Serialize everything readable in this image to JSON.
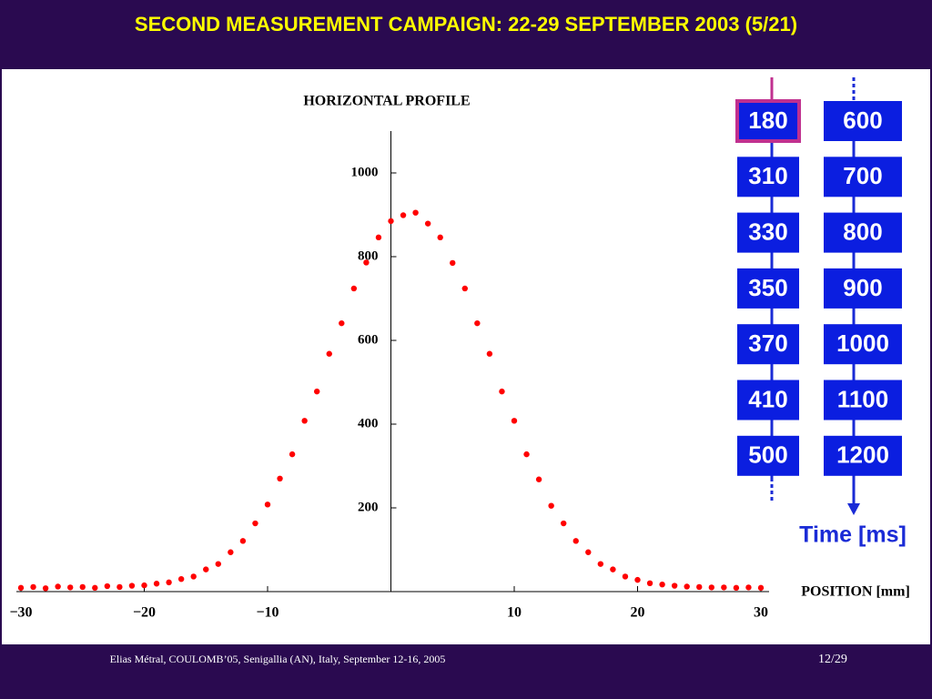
{
  "slide": {
    "title": "SECOND MEASUREMENT CAMPAIGN: 22-29 SEPTEMBER 2003 (5/21)",
    "footer": "Elias Métral, COULOMB’05, Senigallia (AN), Italy, September 12-16, 2005",
    "page": "12/29"
  },
  "time_panel": {
    "columns": [
      [
        "180",
        "310",
        "330",
        "350",
        "370",
        "410",
        "500"
      ],
      [
        "600",
        "700",
        "800",
        "900",
        "1000",
        "1100",
        "1200"
      ]
    ],
    "label": "Time [ms]"
  },
  "chart_data": {
    "type": "scatter",
    "title": "HORIZONTAL PROFILE",
    "x_label": "POSITION [mm]",
    "color": "#ff0000",
    "x": [
      -30,
      -29,
      -28,
      -27,
      -26,
      -25,
      -24,
      -23,
      -22,
      -21,
      -20,
      -19,
      -18,
      -17,
      -16,
      -15,
      -14,
      -13,
      -12,
      -11,
      -10,
      -9,
      -8,
      -7,
      -6,
      -5,
      -4,
      -3,
      -2,
      -1,
      0,
      1,
      2,
      3,
      4,
      5,
      6,
      7,
      8,
      9,
      10,
      11,
      12,
      13,
      14,
      15,
      16,
      17,
      18,
      19,
      20,
      21,
      22,
      23,
      24,
      25,
      26,
      27,
      28,
      29,
      30
    ],
    "values": [
      9,
      11,
      8,
      12,
      10,
      11,
      9,
      13,
      11,
      14,
      15,
      19,
      22,
      30,
      36,
      53,
      66,
      94,
      121,
      163,
      208,
      270,
      328,
      408,
      478,
      568,
      641,
      724,
      786,
      846,
      885,
      899,
      905,
      879,
      846,
      785,
      724,
      641,
      568,
      478,
      408,
      328,
      268,
      205,
      163,
      121,
      94,
      66,
      53,
      36,
      28,
      20,
      17,
      14,
      12,
      11,
      10,
      10,
      9,
      10,
      9
    ],
    "xlim": [
      -30,
      30
    ],
    "ylim": [
      0,
      1100
    ],
    "xticks": [
      {
        "value": -30,
        "label": "−30"
      },
      {
        "value": -20,
        "label": "−20"
      },
      {
        "value": -10,
        "label": "−10"
      },
      10,
      20,
      30
    ],
    "yticks": [
      200,
      400,
      600,
      800,
      1000
    ]
  }
}
